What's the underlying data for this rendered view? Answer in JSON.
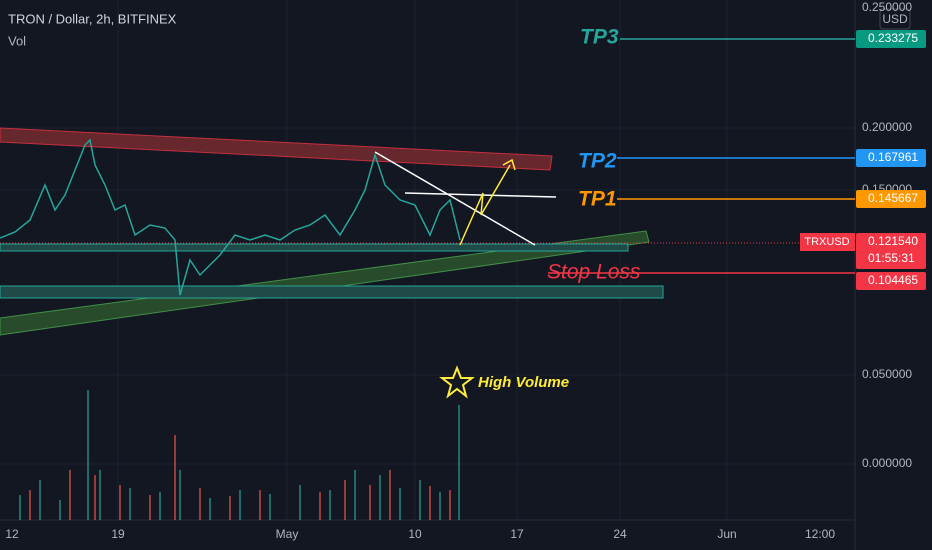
{
  "header": {
    "symbol": "TRON / Dollar, 2h, BITFINEX",
    "indicator": "Vol",
    "currency": "USD"
  },
  "price_axis": [
    "0.250000",
    "0.200000",
    "0.150000",
    "0.050000",
    "0.000000"
  ],
  "time_axis": [
    "12",
    "19",
    "May",
    "10",
    "17",
    "24",
    "Jun",
    "12:00"
  ],
  "price_labels": [
    {
      "text": "0.233275"
    },
    {
      "text": "0.167961"
    },
    {
      "text": "0.145667"
    },
    {
      "symbol": "TRXUSD",
      "text": "0.121540",
      "countdown": "01:55:31"
    },
    {
      "text": "0.104465"
    }
  ],
  "annotations": {
    "tp3": "TP3",
    "tp2": "TP2",
    "tp1": "TP1",
    "stop_loss": "Stop Loss",
    "high_volume": "High Volume"
  }
}
